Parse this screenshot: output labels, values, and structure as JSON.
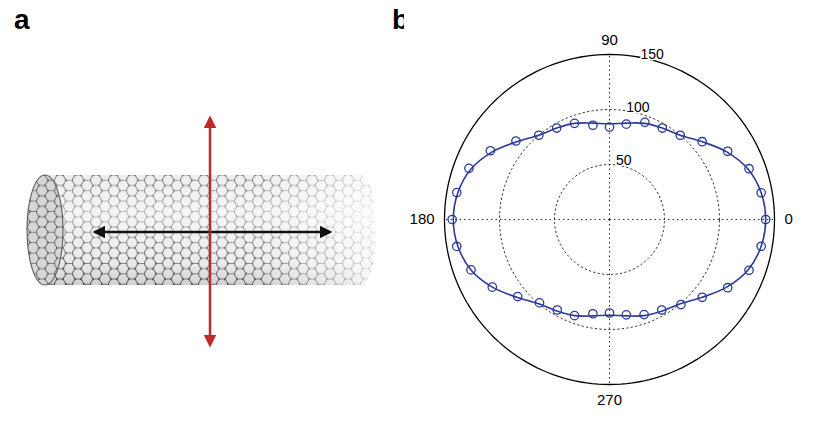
{
  "panels": {
    "a": {
      "label": "a"
    }
  },
  "chart_data": {
    "panel_label": "b",
    "type": "polar",
    "theta": [
      0,
      10,
      20,
      30,
      40,
      50,
      60,
      70,
      80,
      90,
      100,
      110,
      120,
      130,
      140,
      150,
      160,
      170,
      180,
      190,
      200,
      210,
      220,
      230,
      240,
      250,
      260,
      270,
      280,
      290,
      300,
      310,
      320,
      330,
      340,
      350
    ],
    "series": [
      {
        "type": "scatter",
        "marker": "circle",
        "color": "#2b3a98",
        "values": [
          142,
          140,
          135,
          124,
          110,
          100,
          96,
          94,
          88,
          84,
          87,
          93,
          96,
          100,
          111,
          125,
          136,
          141,
          143,
          141,
          134,
          123,
          109,
          99,
          95,
          93,
          87,
          85,
          88,
          92,
          95,
          101,
          110,
          124,
          135,
          140
        ]
      },
      {
        "type": "line",
        "line_style": "solid",
        "color": "#2b3a98",
        "values": [
          142,
          140,
          134,
          123,
          110,
          100,
          96,
          93,
          89,
          87,
          89,
          93,
          96,
          100,
          110,
          123,
          134,
          140,
          142,
          140,
          134,
          123,
          110,
          100,
          96,
          93,
          89,
          87,
          89,
          93,
          96,
          100,
          110,
          123,
          134,
          140
        ]
      }
    ],
    "rlim": [
      0,
      150
    ],
    "rticks": [
      50,
      100,
      150
    ],
    "thetaticks": [
      0,
      90,
      180,
      270
    ],
    "grid": true
  }
}
